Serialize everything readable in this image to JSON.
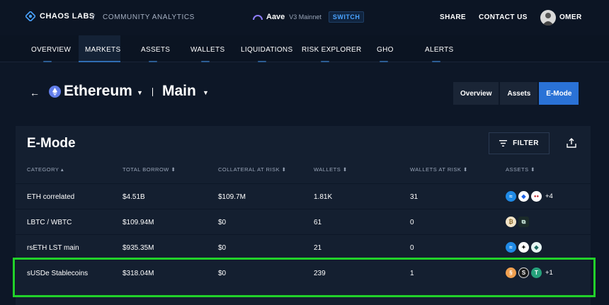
{
  "topbar": {
    "brand": "CHAOS LABS",
    "separator": "/",
    "subtitle": "COMMUNITY ANALYTICS",
    "market_name": "Aave",
    "market_network": "V3 Mainnet",
    "switch_label": "SWITCH",
    "share_label": "SHARE",
    "contact_label": "CONTACT US",
    "user_name": "OMER"
  },
  "nav": {
    "items": [
      "OVERVIEW",
      "MARKETS",
      "ASSETS",
      "WALLETS",
      "LIQUIDATIONS",
      "RISK EXPLORER",
      "GHO",
      "ALERTS"
    ],
    "active": "MARKETS"
  },
  "header": {
    "chain": "Ethereum",
    "market": "Main",
    "view_tabs": [
      "Overview",
      "Assets",
      "E-Mode"
    ],
    "active_tab": "E-Mode"
  },
  "card": {
    "title": "E-Mode",
    "filter_label": "FILTER"
  },
  "table": {
    "columns": [
      "CATEGORY ▴",
      "TOTAL BORROW ⬍",
      "COLLATERAL AT RISK ⬍",
      "WALLETS ⬍",
      "WALLETS AT RISK ⬍",
      "ASSETS ⬍"
    ],
    "rows": [
      {
        "category": "ETH correlated",
        "total_borrow": "$4.51B",
        "collateral_at_risk": "$109.7M",
        "wallets": "1.81K",
        "wallets_at_risk": "31",
        "assets_more": "+4"
      },
      {
        "category": "LBTC / WBTC",
        "total_borrow": "$109.94M",
        "collateral_at_risk": "$0",
        "wallets": "61",
        "wallets_at_risk": "0",
        "assets_more": ""
      },
      {
        "category": "rsETH LST main",
        "total_borrow": "$935.35M",
        "collateral_at_risk": "$0",
        "wallets": "21",
        "wallets_at_risk": "0",
        "assets_more": ""
      },
      {
        "category": "sUSDe Stablecoins",
        "total_borrow": "$318.04M",
        "collateral_at_risk": "$0",
        "wallets": "239",
        "wallets_at_risk": "1",
        "assets_more": "+1"
      }
    ]
  },
  "colors": {
    "accent": "#2a72d6",
    "highlight": "#22d12a",
    "background": "#0d1727"
  },
  "icons": [
    "chaos-labs-logo-icon",
    "aave-icon",
    "avatar",
    "back-arrow-icon",
    "ethereum-icon",
    "filter-icon",
    "export-icon"
  ]
}
